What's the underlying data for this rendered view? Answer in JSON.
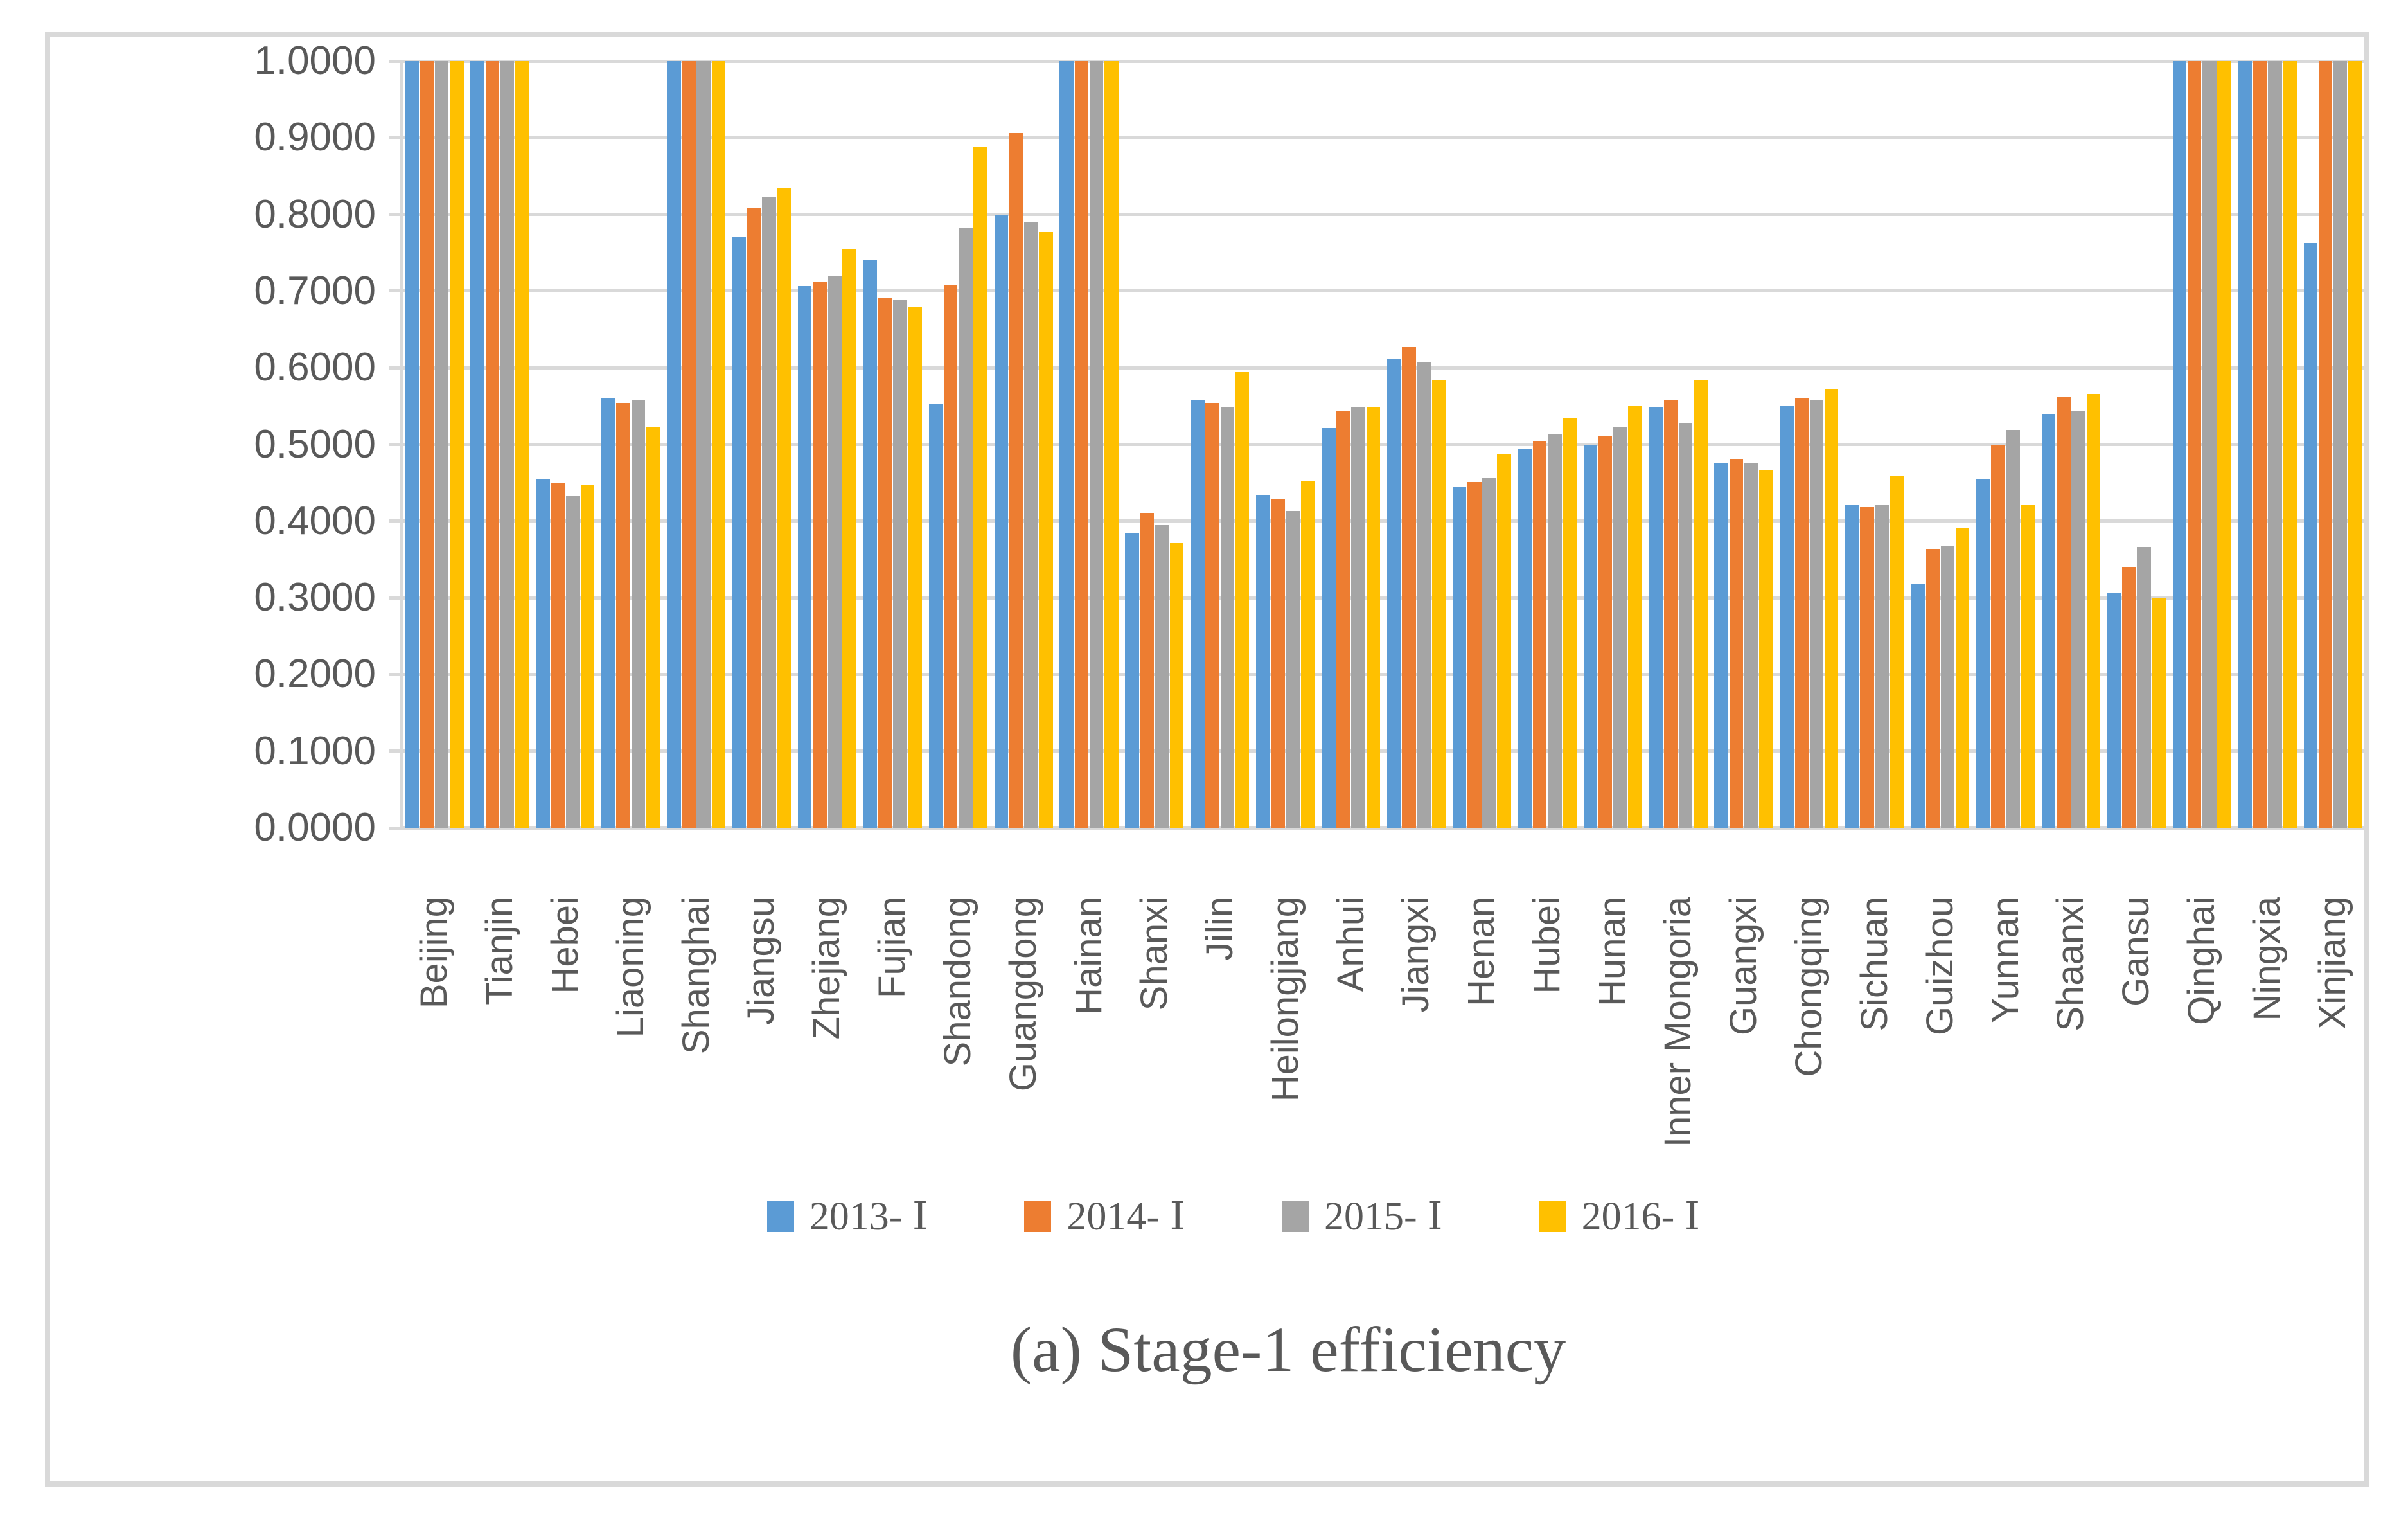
{
  "chart_data": {
    "type": "bar",
    "title": "(a) Stage-1 efficiency",
    "xlabel": "",
    "ylabel": "",
    "ylim": [
      0,
      1
    ],
    "grid": true,
    "legend_position": "bottom",
    "y_axis": {
      "min": 0,
      "max": 1,
      "step": 0.1,
      "tick_labels": [
        "0.0000",
        "0.1000",
        "0.2000",
        "0.3000",
        "0.4000",
        "0.5000",
        "0.6000",
        "0.7000",
        "0.8000",
        "0.9000",
        "1.0000"
      ]
    },
    "categories": [
      "Beijing",
      "Tianjin",
      "Hebei",
      "Liaoning",
      "Shanghai",
      "Jiangsu",
      "Zhejiang",
      "Fujian",
      "Shandong",
      "Guangdong",
      "Hainan",
      "Shanxi",
      "Jilin",
      "Heilongjiang",
      "Anhui",
      "Jiangxi",
      "Henan",
      "Hubei",
      "Hunan",
      "Inner Mongoria",
      "Guangxi",
      "Chongqing",
      "Sichuan",
      "Guizhou",
      "Yunnan",
      "Shaanxi",
      "Gansu",
      "Qinghai",
      "Ningxia",
      "Xinjiang"
    ],
    "series": [
      {
        "name": "2013- Ⅰ",
        "color": "#5B9BD5",
        "values": [
          1.0,
          1.0,
          0.455,
          0.561,
          1.0,
          0.77,
          0.707,
          0.74,
          0.553,
          0.799,
          1.0,
          0.385,
          0.557,
          0.434,
          0.521,
          0.612,
          0.445,
          0.494,
          0.499,
          0.549,
          0.476,
          0.551,
          0.421,
          0.318,
          0.455,
          0.54,
          0.307,
          1.0,
          1.0,
          0.763
        ]
      },
      {
        "name": "2014- Ⅰ",
        "color": "#ED7D31",
        "values": [
          1.0,
          1.0,
          0.45,
          0.554,
          1.0,
          0.809,
          0.712,
          0.691,
          0.708,
          0.906,
          1.0,
          0.411,
          0.554,
          0.428,
          0.543,
          0.627,
          0.451,
          0.505,
          0.511,
          0.557,
          0.481,
          0.561,
          0.418,
          0.364,
          0.499,
          0.562,
          0.34,
          1.0,
          1.0,
          1.0
        ]
      },
      {
        "name": "2015- Ⅰ",
        "color": "#A5A5A5",
        "values": [
          1.0,
          1.0,
          0.433,
          0.558,
          1.0,
          0.822,
          0.72,
          0.688,
          0.783,
          0.79,
          1.0,
          0.395,
          0.548,
          0.413,
          0.549,
          0.608,
          0.457,
          0.513,
          0.522,
          0.528,
          0.475,
          0.558,
          0.422,
          0.368,
          0.519,
          0.544,
          0.366,
          1.0,
          1.0,
          1.0
        ]
      },
      {
        "name": "2016- Ⅰ",
        "color": "#FFC000",
        "values": [
          1.0,
          1.0,
          0.447,
          0.522,
          1.0,
          0.834,
          0.755,
          0.68,
          0.888,
          0.777,
          1.0,
          0.371,
          0.594,
          0.452,
          0.548,
          0.584,
          0.488,
          0.534,
          0.551,
          0.583,
          0.466,
          0.572,
          0.459,
          0.391,
          0.422,
          0.566,
          0.299,
          1.0,
          1.0,
          1.0
        ]
      }
    ],
    "style": {
      "grid_color": "#D9D9D9",
      "axis_text_color": "#595959",
      "title_color": "#595959",
      "background": "#FFFFFF",
      "frame_border_color": "#D9D9D9"
    }
  }
}
